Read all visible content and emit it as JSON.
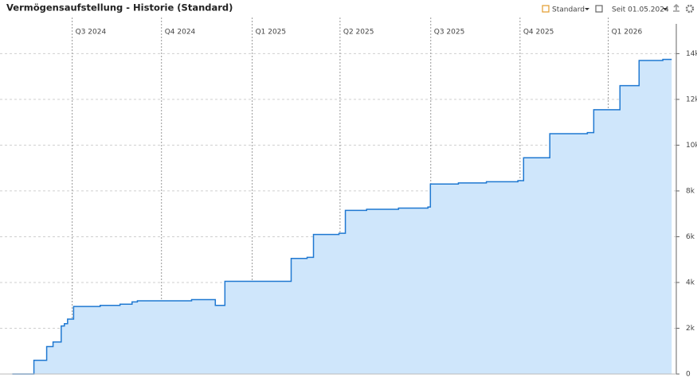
{
  "chart_data": {
    "type": "line",
    "title": "Vermögensaufstellung - Historie (Standard)",
    "step": "after",
    "area": true,
    "color": "#1f78d1",
    "fill": "#cfe6fb",
    "grid": true,
    "x": [
      2024.331,
      2024.392,
      2024.428,
      2024.446,
      2024.469,
      2024.478,
      2024.487,
      2024.504,
      2024.579,
      2024.635,
      2024.669,
      2024.684,
      2024.837,
      2024.904,
      2024.931,
      2025.118,
      2025.163,
      2025.181,
      2025.253,
      2025.271,
      2025.331,
      2025.421,
      2025.504,
      2025.511,
      2025.59,
      2025.669,
      2025.758,
      2025.774,
      2025.848,
      2025.954,
      2025.972,
      2026.046,
      2026.1,
      2026.167,
      2026.192
    ],
    "values": [
      0,
      600,
      1200,
      1400,
      2100,
      2200,
      2400,
      2950,
      3000,
      3050,
      3150,
      3200,
      3250,
      3000,
      4050,
      5050,
      5100,
      6100,
      6150,
      7150,
      7200,
      7250,
      7300,
      8300,
      8350,
      8400,
      8450,
      9450,
      10500,
      10550,
      11550,
      12600,
      13700,
      13750,
      13750
    ],
    "xlim": [
      2024.33,
      2026.205
    ],
    "xticks": [
      {
        "value": 2024.5,
        "label": "Q3 2024"
      },
      {
        "value": 2024.752,
        "label": "Q4 2024"
      },
      {
        "value": 2025.008,
        "label": "Q1 2025"
      },
      {
        "value": 2025.256,
        "label": "Q2 2025"
      },
      {
        "value": 2025.512,
        "label": "Q3 2025"
      },
      {
        "value": 2025.764,
        "label": "Q4 2025"
      },
      {
        "value": 2026.013,
        "label": "Q1 2026"
      }
    ],
    "ylim": [
      0,
      15300
    ],
    "yticks": [
      0,
      {
        "value": 2000,
        "label": "2k"
      },
      {
        "value": 4000,
        "label": "4k"
      },
      {
        "value": 6000,
        "label": "6k"
      },
      {
        "value": 8000,
        "label": "8k"
      },
      {
        "value": 10000,
        "label": "10k"
      },
      {
        "value": 12000,
        "label": "12k"
      },
      {
        "value": 14000,
        "label": "14k"
      }
    ]
  },
  "toolbar": {
    "view": "Standard",
    "period": "Seit 01.05.2024"
  }
}
